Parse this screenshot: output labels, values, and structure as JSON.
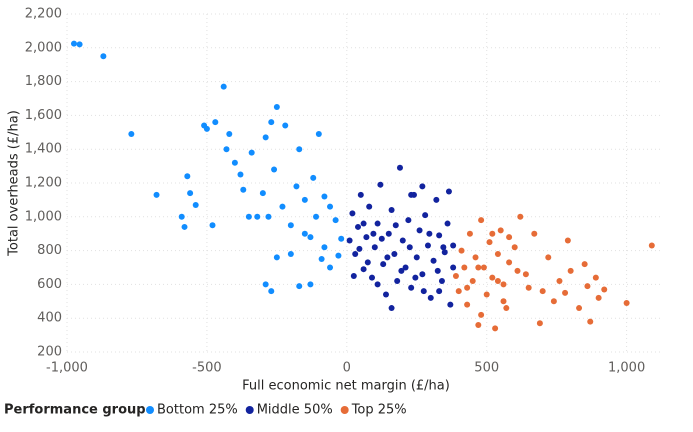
{
  "chart_data": {
    "type": "scatter",
    "x_label": "Full economic net margin (£/ha)",
    "y_label": "Total overheads (£/ha)",
    "legend_title": "Performance group",
    "xlim": [
      -1000,
      1130
    ],
    "ylim": [
      200,
      2200
    ],
    "xticks": [
      {
        "value": -1000,
        "label": "-1,000"
      },
      -500,
      0,
      500,
      {
        "value": 1000,
        "label": "1,000"
      }
    ],
    "yticks": [
      200,
      400,
      600,
      800,
      {
        "value": 1000,
        "label": "1,000"
      },
      {
        "value": 1200,
        "label": "1,200"
      },
      {
        "value": 1400,
        "label": "1,400"
      },
      {
        "value": 1600,
        "label": "1,600"
      },
      {
        "value": 1800,
        "label": "1,800"
      },
      {
        "value": 2000,
        "label": "2,000"
      },
      {
        "value": 2200,
        "label": "2,200"
      }
    ],
    "grid": true,
    "series": [
      {
        "name": "Bottom 25%",
        "color": "#118dff",
        "x": [
          -975,
          -955,
          -870,
          -770,
          -680,
          -590,
          -580,
          -570,
          -560,
          -540,
          -510,
          -500,
          -480,
          -470,
          -440,
          -430,
          -420,
          -400,
          -380,
          -370,
          -350,
          -340,
          -300,
          -290,
          -280,
          -270,
          -260,
          -250,
          -230,
          -220,
          -200,
          -180,
          -170,
          -150,
          -130,
          -110,
          -100,
          -80,
          -60,
          -40,
          -20,
          -290,
          -270,
          -170,
          -130,
          -200,
          -250,
          -150,
          -90,
          -60,
          -30,
          -320,
          -120,
          -80
        ],
        "y": [
          2025,
          2020,
          1950,
          1490,
          1130,
          1000,
          940,
          1240,
          1140,
          1070,
          1540,
          1520,
          950,
          1560,
          1770,
          1400,
          1490,
          1320,
          1250,
          1160,
          1000,
          1380,
          1140,
          1470,
          1000,
          1560,
          1280,
          1650,
          1060,
          1540,
          950,
          1180,
          1400,
          1100,
          880,
          1000,
          1490,
          820,
          700,
          980,
          870,
          600,
          560,
          590,
          600,
          780,
          760,
          900,
          750,
          1060,
          770,
          1000,
          1230,
          1120
        ]
      },
      {
        "name": "Middle 50%",
        "color": "#12239e",
        "x": [
          10,
          20,
          30,
          40,
          50,
          60,
          70,
          80,
          90,
          100,
          110,
          120,
          130,
          140,
          150,
          160,
          170,
          180,
          190,
          200,
          210,
          220,
          230,
          240,
          250,
          260,
          270,
          280,
          290,
          300,
          310,
          320,
          330,
          340,
          350,
          360,
          370,
          380,
          25,
          75,
          125,
          175,
          225,
          275,
          325,
          45,
          95,
          145,
          195,
          245,
          295,
          345,
          365,
          230,
          160,
          60,
          110,
          270,
          330,
          380
        ],
        "y": [
          860,
          1020,
          780,
          940,
          1130,
          690,
          880,
          1060,
          640,
          820,
          960,
          1190,
          720,
          540,
          900,
          1040,
          780,
          620,
          1290,
          860,
          700,
          980,
          580,
          1130,
          760,
          920,
          660,
          1010,
          830,
          520,
          740,
          1100,
          890,
          620,
          790,
          960,
          480,
          700,
          650,
          730,
          870,
          950,
          820,
          560,
          680,
          810,
          900,
          760,
          680,
          640,
          900,
          820,
          1150,
          1130,
          460,
          960,
          600,
          1180,
          560,
          830
        ]
      },
      {
        "name": "Top 25%",
        "color": "#e66c37",
        "x": [
          390,
          400,
          410,
          420,
          430,
          440,
          450,
          460,
          470,
          480,
          490,
          500,
          510,
          520,
          530,
          540,
          550,
          560,
          570,
          580,
          600,
          620,
          640,
          650,
          670,
          690,
          700,
          720,
          740,
          760,
          780,
          790,
          800,
          830,
          850,
          860,
          870,
          890,
          900,
          920,
          1000,
          1090,
          430,
          480,
          520,
          560,
          610,
          470,
          540,
          580
        ],
        "y": [
          650,
          560,
          800,
          700,
          480,
          900,
          620,
          760,
          360,
          980,
          700,
          540,
          850,
          640,
          340,
          780,
          920,
          600,
          460,
          730,
          820,
          1000,
          660,
          580,
          900,
          370,
          560,
          760,
          500,
          620,
          550,
          860,
          680,
          460,
          720,
          590,
          380,
          640,
          520,
          570,
          490,
          830,
          580,
          420,
          900,
          500,
          680,
          700,
          620,
          880
        ]
      }
    ]
  }
}
